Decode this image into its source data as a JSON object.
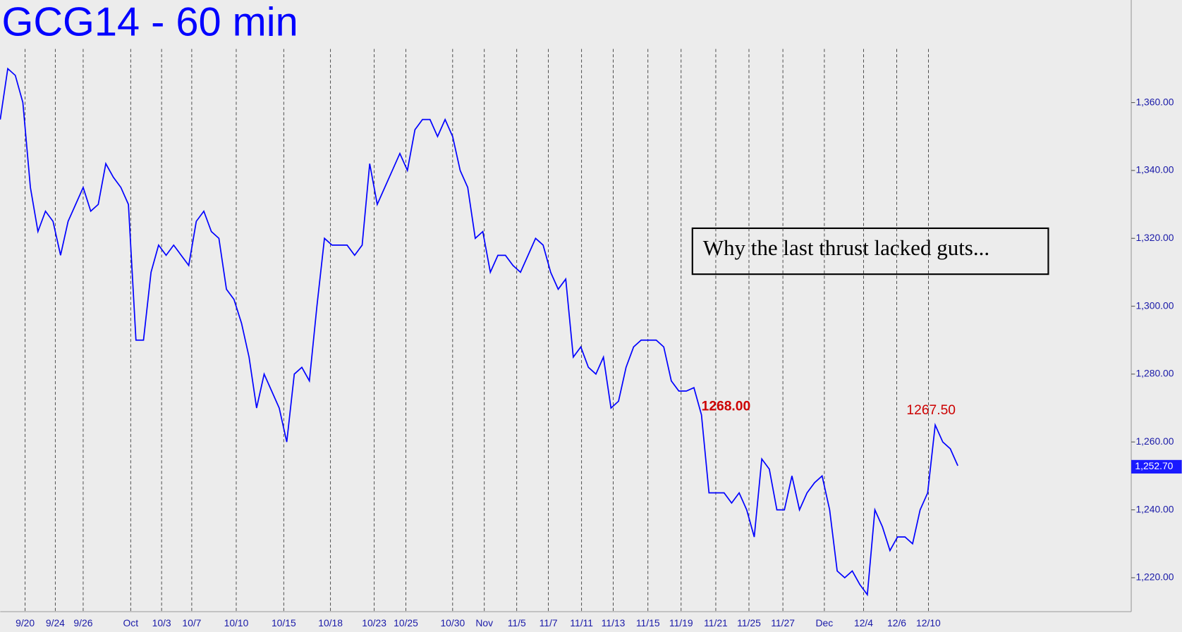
{
  "chart_data": {
    "type": "line",
    "title": "GCG14 - 60 min",
    "color": "#0000ff",
    "ylim": [
      1210,
      1390
    ],
    "yticks": [
      {
        "value": 1220,
        "label": "1,220.00"
      },
      {
        "value": 1240,
        "label": "1,240.00"
      },
      {
        "value": 1260,
        "label": "1,260.00"
      },
      {
        "value": 1280,
        "label": "1,280.00"
      },
      {
        "value": 1300,
        "label": "1,300.00"
      },
      {
        "value": 1320,
        "label": "1,320.00"
      },
      {
        "value": 1340,
        "label": "1,340.00"
      },
      {
        "value": 1360,
        "label": "1,360.00"
      }
    ],
    "xlim": [
      0,
      150
    ],
    "xticks": [
      {
        "value": 3.3,
        "label": "9/20"
      },
      {
        "value": 7.3,
        "label": "9/24"
      },
      {
        "value": 11,
        "label": "9/26"
      },
      {
        "value": 17.3,
        "label": "Oct"
      },
      {
        "value": 21.4,
        "label": "10/3"
      },
      {
        "value": 25.4,
        "label": "10/7"
      },
      {
        "value": 31.3,
        "label": "10/10"
      },
      {
        "value": 37.6,
        "label": "10/15"
      },
      {
        "value": 43.8,
        "label": "10/18"
      },
      {
        "value": 49.6,
        "label": "10/23"
      },
      {
        "value": 53.8,
        "label": "10/25"
      },
      {
        "value": 60,
        "label": "10/30"
      },
      {
        "value": 64.2,
        "label": "Nov"
      },
      {
        "value": 68.5,
        "label": "11/5"
      },
      {
        "value": 72.7,
        "label": "11/7"
      },
      {
        "value": 77.1,
        "label": "11/11"
      },
      {
        "value": 81.3,
        "label": "11/13"
      },
      {
        "value": 85.9,
        "label": "11/15"
      },
      {
        "value": 90.3,
        "label": "11/19"
      },
      {
        "value": 94.9,
        "label": "11/21"
      },
      {
        "value": 99.3,
        "label": "11/25"
      },
      {
        "value": 103.8,
        "label": "11/27"
      },
      {
        "value": 109.3,
        "label": "Dec"
      },
      {
        "value": 114.5,
        "label": "12/4"
      },
      {
        "value": 118.9,
        "label": "12/6"
      },
      {
        "value": 123.1,
        "label": "12/10"
      }
    ],
    "values": [
      1355,
      1370,
      1368,
      1360,
      1335,
      1322,
      1328,
      1325,
      1315,
      1325,
      1330,
      1335,
      1328,
      1330,
      1342,
      1338,
      1335,
      1330,
      1290,
      1290,
      1310,
      1318,
      1315,
      1318,
      1315,
      1312,
      1325,
      1328,
      1322,
      1320,
      1305,
      1302,
      1295,
      1285,
      1270,
      1280,
      1275,
      1270,
      1260,
      1280,
      1282,
      1278,
      1300,
      1320,
      1318,
      1318,
      1318,
      1315,
      1318,
      1342,
      1330,
      1335,
      1340,
      1345,
      1340,
      1352,
      1355,
      1355,
      1350,
      1355,
      1350,
      1340,
      1335,
      1320,
      1322,
      1310,
      1315,
      1315,
      1312,
      1310,
      1315,
      1320,
      1318,
      1310,
      1305,
      1308,
      1285,
      1288,
      1282,
      1280,
      1285,
      1270,
      1272,
      1282,
      1288,
      1290,
      1290,
      1290,
      1288,
      1278,
      1275,
      1275,
      1276,
      1268,
      1245,
      1245,
      1245,
      1242,
      1245,
      1240,
      1232,
      1255,
      1252,
      1240,
      1240,
      1250,
      1240,
      1245,
      1248,
      1250,
      1240,
      1222,
      1220,
      1222,
      1218,
      1215,
      1240,
      1235,
      1228,
      1232,
      1232,
      1230,
      1240,
      1245,
      1265,
      1260,
      1258,
      1253
    ],
    "last_price": {
      "value": 1252.7,
      "label": "1,252.70"
    },
    "annotations": [
      "1268.00",
      "1267.50"
    ],
    "note": "Why the last thrust lacked guts..."
  }
}
